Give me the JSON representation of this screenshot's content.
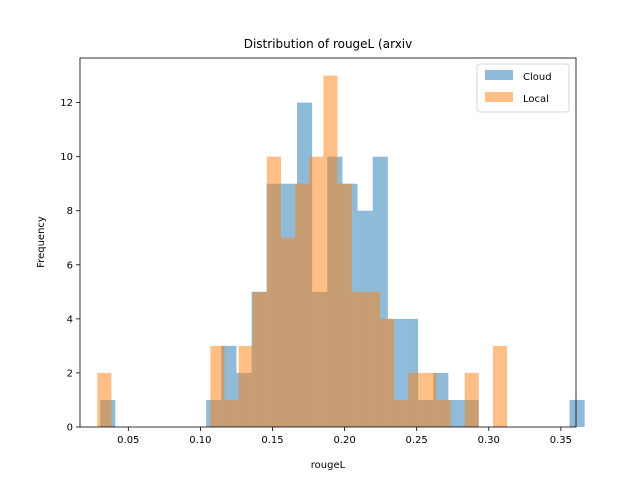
{
  "chart_data": {
    "type": "bar",
    "title": "Distribution of rougeL (arxiv",
    "xlabel": "rougeL",
    "ylabel": "Frequency",
    "xlim": [
      0.0165,
      0.3605
    ],
    "ylim": [
      0,
      13.65
    ],
    "xticks": [
      0.05,
      0.1,
      0.15,
      0.2,
      0.25,
      0.3,
      0.35
    ],
    "xtick_labels": [
      "0.05",
      "0.10",
      "0.15",
      "0.20",
      "0.25",
      "0.30",
      "0.35"
    ],
    "yticks": [
      0,
      2,
      4,
      6,
      8,
      10,
      12
    ],
    "ytick_labels": [
      "0",
      "2",
      "4",
      "6",
      "8",
      "10",
      "12"
    ],
    "grid": false,
    "legend_position": "upper right",
    "alpha": 0.5,
    "series": [
      {
        "name": "Cloud",
        "color": "#1f77b4",
        "bin_start": 0.0305,
        "bin_width": 0.0105,
        "counts": [
          1,
          0,
          0,
          0,
          0,
          0,
          0,
          1,
          3,
          2,
          5,
          9,
          9,
          12,
          5,
          10,
          9,
          8,
          10,
          4,
          4,
          1,
          2,
          1,
          1,
          0,
          0,
          0,
          0,
          0,
          0,
          1
        ],
        "wide_bins_note": ""
      },
      {
        "name": "Local",
        "color": "#ff7f0e",
        "bin_start": 0.0285,
        "bin_width": 0.0098,
        "counts": [
          2,
          0,
          0,
          0,
          0,
          0,
          0,
          0,
          3,
          1,
          3,
          5,
          10,
          7,
          9,
          10,
          13,
          9,
          5,
          5,
          4,
          1,
          2,
          2,
          1,
          0,
          2,
          0,
          3,
          0,
          0,
          0
        ]
      }
    ]
  }
}
